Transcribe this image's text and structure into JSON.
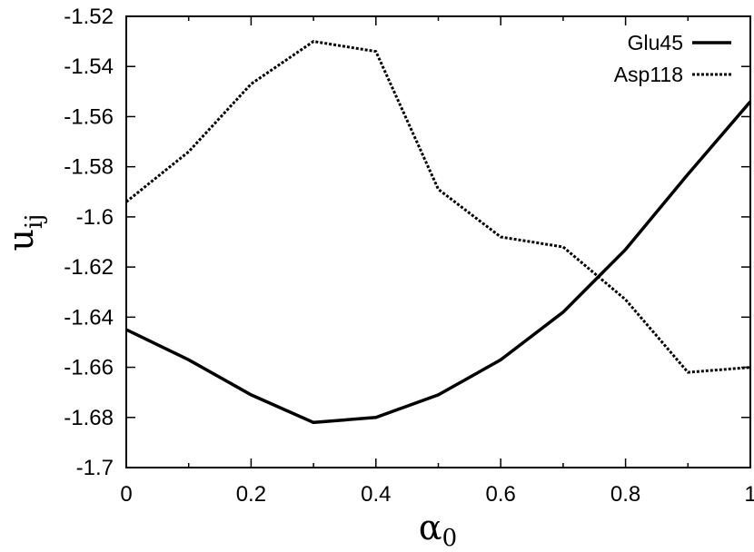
{
  "chart_data": {
    "type": "line",
    "title": "",
    "xlabel": "α",
    "xlabel_sub": "0",
    "ylabel": "u",
    "ylabel_sub": "ij",
    "xlim": [
      0,
      1
    ],
    "ylim": [
      -1.7,
      -1.52
    ],
    "x_ticks": [
      0,
      0.2,
      0.4,
      0.6,
      0.8,
      1
    ],
    "x_tick_labels": [
      "0",
      "0.2",
      "0.4",
      "0.6",
      "0.8",
      "1"
    ],
    "y_ticks": [
      -1.7,
      -1.68,
      -1.66,
      -1.64,
      -1.62,
      -1.6,
      -1.58,
      -1.56,
      -1.54,
      -1.52
    ],
    "y_tick_labels": [
      "-1.7",
      "-1.68",
      "-1.66",
      "-1.64",
      "-1.62",
      "-1.6",
      "-1.58",
      "-1.56",
      "-1.54",
      "-1.52"
    ],
    "grid": false,
    "legend_position": "top-right",
    "x": [
      0,
      0.1,
      0.2,
      0.3,
      0.4,
      0.5,
      0.6,
      0.7,
      0.8,
      0.9,
      1.0
    ],
    "series": [
      {
        "name": "Glu45",
        "style": "solid",
        "color": "#000000",
        "values": [
          -1.645,
          -1.657,
          -1.671,
          -1.682,
          -1.68,
          -1.671,
          -1.657,
          -1.638,
          -1.613,
          -1.583,
          -1.554
        ]
      },
      {
        "name": "Asp118",
        "style": "dotted",
        "color": "#000000",
        "values": [
          -1.594,
          -1.574,
          -1.547,
          -1.53,
          -1.534,
          -1.589,
          -1.608,
          -1.612,
          -1.633,
          -1.662,
          -1.66
        ]
      }
    ]
  }
}
